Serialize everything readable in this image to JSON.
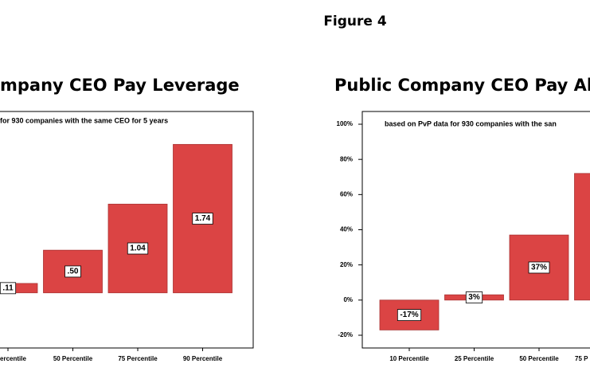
{
  "header": {
    "title": "Figure 4"
  },
  "chart_data": [
    {
      "type": "bar",
      "title": "mpany CEO Pay Leverage",
      "subtitle": "for 930 companies with the same CEO for 5 years",
      "categories": [
        "ercentile",
        "50 Percentile",
        "75 Percentile",
        "90 Percentile"
      ],
      "values": [
        0.11,
        0.5,
        1.04,
        1.74
      ],
      "value_labels": [
        ".11",
        ".50",
        "1.04",
        "1.74"
      ],
      "color": "#db4444",
      "ylim": [
        -0.6,
        2.07
      ]
    },
    {
      "type": "bar",
      "title": "Public Company CEO Pay Ali",
      "subtitle": "based on PvP data for 930 companies with the san",
      "categories": [
        "10 Percentile",
        "25 Percentile",
        "50 Percentile",
        "75 P"
      ],
      "values": [
        -17,
        3,
        37,
        72
      ],
      "value_labels": [
        "-17%",
        "3%",
        "37%",
        null
      ],
      "color": "#db4444",
      "ylim": [
        -20,
        100
      ],
      "yticks": [
        {
          "value": 100,
          "label": "100%"
        },
        {
          "value": 80,
          "label": "80%"
        },
        {
          "value": 60,
          "label": "60%"
        },
        {
          "value": 40,
          "label": "40%"
        },
        {
          "value": 20,
          "label": "20%"
        },
        {
          "value": 0,
          "label": "0%"
        },
        {
          "value": -20,
          "label": "-20%"
        }
      ]
    }
  ]
}
